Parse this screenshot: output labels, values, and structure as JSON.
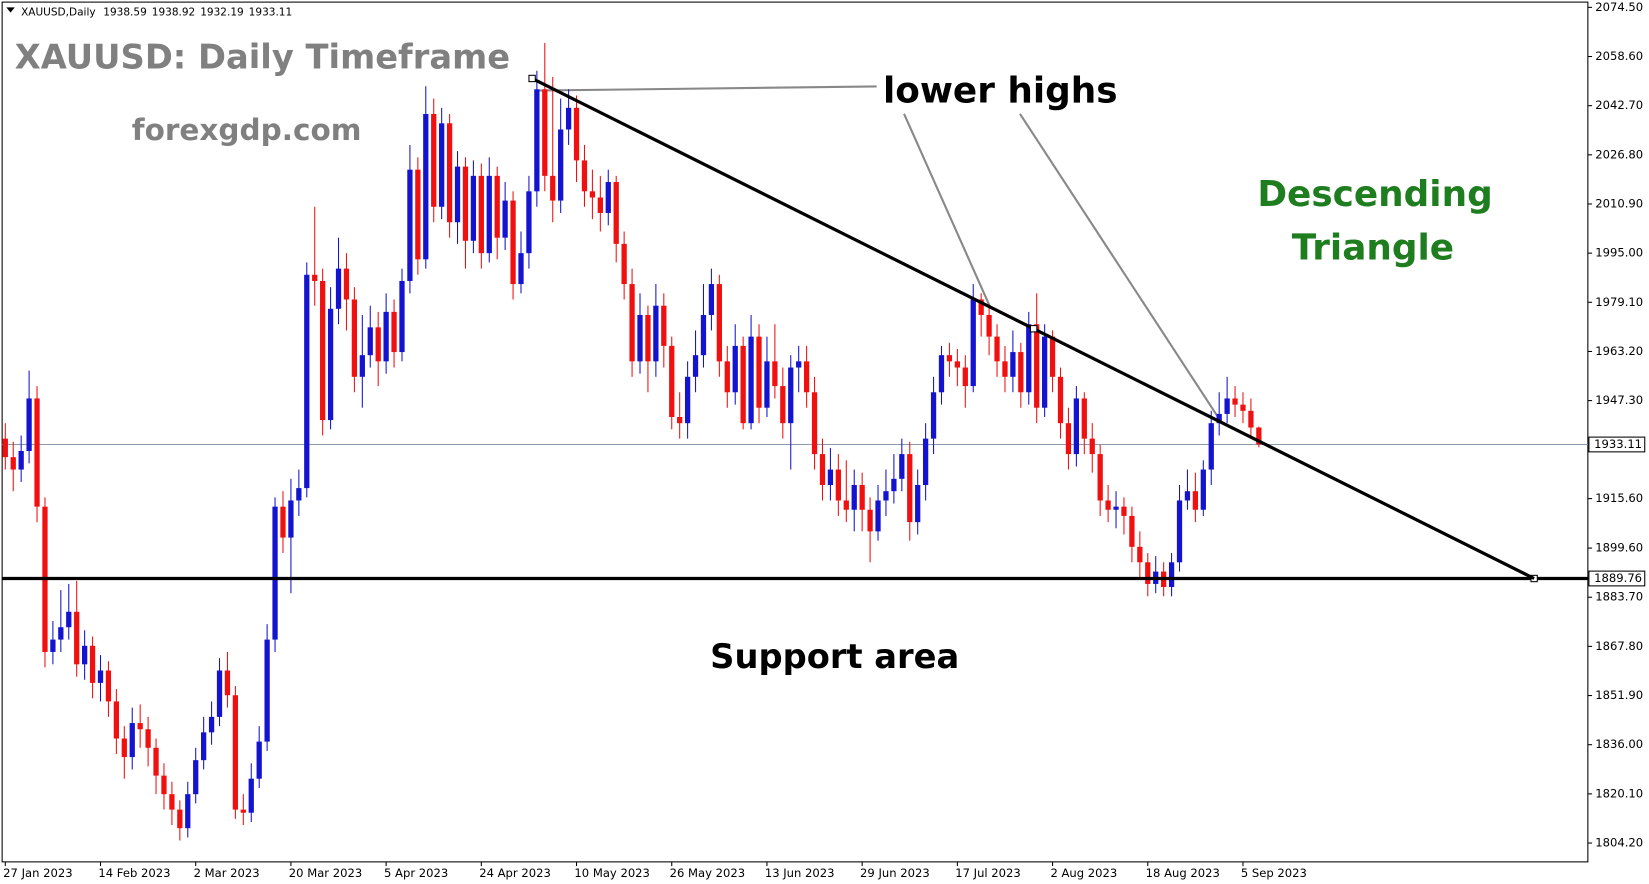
{
  "chart_data": {
    "type": "candlestick",
    "symbol": "XAUUSD,Daily",
    "title": "XAUUSD: Daily Timeframe",
    "subtitle": "forexgdp.com",
    "annotations": {
      "lower_highs": "lower highs",
      "pattern": [
        "Descending",
        "Triangle"
      ],
      "support": "Support area"
    },
    "bull_color": "#1414d0",
    "bear_color": "#f01010",
    "support_level": 1889.76,
    "trendline": {
      "start": 2051.5,
      "end": 1889.76
    },
    "ylim": [
      1798.1,
      2076.2
    ],
    "yticks": [
      {
        "value": 2074.5,
        "label": "2074.50"
      },
      {
        "value": 2058.6,
        "label": "2058.60"
      },
      {
        "value": 2042.7,
        "label": "2042.70"
      },
      {
        "value": 2026.8,
        "label": "2026.80"
      },
      {
        "value": 2010.9,
        "label": "2010.90"
      },
      {
        "value": 1995.0,
        "label": "1995.00"
      },
      {
        "value": 1979.1,
        "label": "1979.10"
      },
      {
        "value": 1963.2,
        "label": "1963.20"
      },
      {
        "value": 1947.3,
        "label": "1947.30"
      },
      {
        "value": 1915.6,
        "label": "1915.60"
      },
      {
        "value": 1899.6,
        "label": "1899.60"
      },
      {
        "value": 1883.7,
        "label": "1883.70"
      },
      {
        "value": 1867.8,
        "label": "1867.80"
      },
      {
        "value": 1851.9,
        "label": "1851.90"
      },
      {
        "value": 1836.0,
        "label": "1836.00"
      },
      {
        "value": 1820.1,
        "label": "1820.10"
      },
      {
        "value": 1804.2,
        "label": "1804.20"
      }
    ],
    "categories": [
      "27 Jan 2023",
      null,
      null,
      null,
      null,
      null,
      null,
      null,
      null,
      null,
      null,
      null,
      "14 Feb 2023",
      null,
      null,
      null,
      null,
      null,
      null,
      null,
      null,
      null,
      null,
      null,
      "2 Mar 2023",
      null,
      null,
      null,
      null,
      null,
      null,
      null,
      null,
      null,
      null,
      null,
      "20 Mar 2023",
      null,
      null,
      null,
      null,
      null,
      null,
      null,
      null,
      null,
      null,
      null,
      "5 Apr 2023",
      null,
      null,
      null,
      null,
      null,
      null,
      null,
      null,
      null,
      null,
      null,
      "24 Apr 2023",
      null,
      null,
      null,
      null,
      null,
      null,
      null,
      null,
      null,
      null,
      null,
      "10 May 2023",
      null,
      null,
      null,
      null,
      null,
      null,
      null,
      null,
      null,
      null,
      null,
      "26 May 2023",
      null,
      null,
      null,
      null,
      null,
      null,
      null,
      null,
      null,
      null,
      null,
      "13 Jun 2023",
      null,
      null,
      null,
      null,
      null,
      null,
      null,
      null,
      null,
      null,
      null,
      "29 Jun 2023",
      null,
      null,
      null,
      null,
      null,
      null,
      null,
      null,
      null,
      null,
      null,
      "17 Jul 2023",
      null,
      null,
      null,
      null,
      null,
      null,
      null,
      null,
      null,
      null,
      null,
      "2 Aug 2023",
      null,
      null,
      null,
      null,
      null,
      null,
      null,
      null,
      null,
      null,
      null,
      "18 Aug 2023",
      null,
      null,
      null,
      null,
      null,
      null,
      null,
      null,
      null,
      null,
      null,
      "5 Sep 2023",
      null,
      null
    ],
    "ohlc": [
      [
        1935,
        1940,
        1925,
        1929
      ],
      [
        1929,
        1934,
        1918,
        1925
      ],
      [
        1925,
        1936,
        1921,
        1931
      ],
      [
        1931,
        1957,
        1927,
        1948
      ],
      [
        1948,
        1952,
        1908,
        1913
      ],
      [
        1913,
        1916,
        1861,
        1866
      ],
      [
        1866,
        1876,
        1862,
        1870
      ],
      [
        1870,
        1886,
        1866,
        1874
      ],
      [
        1874,
        1888,
        1870,
        1879
      ],
      [
        1879,
        1889,
        1858,
        1862
      ],
      [
        1862,
        1873,
        1857,
        1868
      ],
      [
        1868,
        1871,
        1851,
        1856
      ],
      [
        1856,
        1865,
        1850,
        1860
      ],
      [
        1860,
        1863,
        1845,
        1850
      ],
      [
        1850,
        1854,
        1833,
        1838
      ],
      [
        1838,
        1842,
        1825,
        1832
      ],
      [
        1832,
        1848,
        1828,
        1843
      ],
      [
        1843,
        1849,
        1835,
        1841
      ],
      [
        1841,
        1845,
        1829,
        1835
      ],
      [
        1835,
        1838,
        1820,
        1826
      ],
      [
        1826,
        1830,
        1815,
        1820
      ],
      [
        1820,
        1824,
        1810,
        1815
      ],
      [
        1815,
        1818,
        1805,
        1809
      ],
      [
        1809,
        1824,
        1806,
        1820
      ],
      [
        1820,
        1835,
        1817,
        1831
      ],
      [
        1831,
        1845,
        1828,
        1840
      ],
      [
        1840,
        1850,
        1836,
        1845
      ],
      [
        1845,
        1864,
        1842,
        1860
      ],
      [
        1860,
        1866,
        1848,
        1852
      ],
      [
        1852,
        1855,
        1812,
        1815
      ],
      [
        1815,
        1820,
        1810,
        1814
      ],
      [
        1814,
        1830,
        1811,
        1825
      ],
      [
        1825,
        1842,
        1822,
        1837
      ],
      [
        1837,
        1875,
        1834,
        1870
      ],
      [
        1870,
        1916,
        1866,
        1913
      ],
      [
        1913,
        1918,
        1898,
        1903
      ],
      [
        1903,
        1922,
        1885,
        1915
      ],
      [
        1915,
        1925,
        1910,
        1919
      ],
      [
        1919,
        1992,
        1916,
        1988
      ],
      [
        1988,
        2010,
        1978,
        1986
      ],
      [
        1986,
        1990,
        1936,
        1941
      ],
      [
        1941,
        1984,
        1938,
        1977
      ],
      [
        1977,
        2000,
        1972,
        1990
      ],
      [
        1990,
        1995,
        1970,
        1980
      ],
      [
        1980,
        1984,
        1950,
        1955
      ],
      [
        1955,
        1975,
        1945,
        1962
      ],
      [
        1962,
        1978,
        1958,
        1971
      ],
      [
        1971,
        1976,
        1952,
        1960
      ],
      [
        1960,
        1982,
        1956,
        1976
      ],
      [
        1976,
        1980,
        1958,
        1963
      ],
      [
        1963,
        1990,
        1960,
        1986
      ],
      [
        1986,
        2030,
        1982,
        2022
      ],
      [
        2022,
        2026,
        1988,
        1993
      ],
      [
        1993,
        2049,
        1990,
        2040
      ],
      [
        2040,
        2045,
        2005,
        2010
      ],
      [
        2010,
        2042,
        2006,
        2037
      ],
      [
        2037,
        2040,
        2000,
        2005
      ],
      [
        2005,
        2028,
        1998,
        2023
      ],
      [
        2023,
        2026,
        1990,
        1999
      ],
      [
        1999,
        2025,
        1995,
        2020
      ],
      [
        2020,
        2024,
        1990,
        1995
      ],
      [
        1995,
        2026,
        1992,
        2020
      ],
      [
        2020,
        2023,
        1993,
        2000
      ],
      [
        2000,
        2018,
        1996,
        2012
      ],
      [
        2012,
        2015,
        1980,
        1985
      ],
      [
        1985,
        2002,
        1982,
        1995
      ],
      [
        1995,
        2020,
        1990,
        2015
      ],
      [
        2015,
        2054,
        2010,
        2048
      ],
      [
        2048,
        2063,
        2015,
        2020
      ],
      [
        2020,
        2052,
        2005,
        2012
      ],
      [
        2012,
        2045,
        2008,
        2035
      ],
      [
        2035,
        2048,
        2030,
        2042
      ],
      [
        2042,
        2046,
        2018,
        2025
      ],
      [
        2025,
        2030,
        2010,
        2015
      ],
      [
        2015,
        2022,
        2006,
        2013
      ],
      [
        2013,
        2020,
        2002,
        2008
      ],
      [
        2008,
        2022,
        2004,
        2018
      ],
      [
        2018,
        2020,
        1992,
        1998
      ],
      [
        1998,
        2002,
        1980,
        1985
      ],
      [
        1985,
        1990,
        1955,
        1960
      ],
      [
        1960,
        1982,
        1956,
        1975
      ],
      [
        1975,
        1978,
        1950,
        1960
      ],
      [
        1960,
        1985,
        1955,
        1978
      ],
      [
        1978,
        1982,
        1958,
        1965
      ],
      [
        1965,
        1968,
        1938,
        1942
      ],
      [
        1942,
        1950,
        1935,
        1940
      ],
      [
        1940,
        1960,
        1935,
        1955
      ],
      [
        1955,
        1970,
        1950,
        1962
      ],
      [
        1962,
        1985,
        1958,
        1975
      ],
      [
        1975,
        1990,
        1970,
        1985
      ],
      [
        1985,
        1988,
        1955,
        1960
      ],
      [
        1960,
        1965,
        1945,
        1950
      ],
      [
        1950,
        1972,
        1946,
        1965
      ],
      [
        1965,
        1968,
        1938,
        1940
      ],
      [
        1940,
        1975,
        1938,
        1968
      ],
      [
        1968,
        1972,
        1940,
        1945
      ],
      [
        1945,
        1968,
        1942,
        1960
      ],
      [
        1960,
        1972,
        1948,
        1952
      ],
      [
        1952,
        1958,
        1935,
        1940
      ],
      [
        1940,
        1962,
        1925,
        1958
      ],
      [
        1958,
        1965,
        1950,
        1960
      ],
      [
        1960,
        1965,
        1945,
        1950
      ],
      [
        1950,
        1955,
        1925,
        1930
      ],
      [
        1930,
        1935,
        1915,
        1920
      ],
      [
        1920,
        1932,
        1915,
        1925
      ],
      [
        1925,
        1930,
        1910,
        1915
      ],
      [
        1915,
        1928,
        1908,
        1912
      ],
      [
        1912,
        1925,
        1905,
        1920
      ],
      [
        1920,
        1924,
        1905,
        1912
      ],
      [
        1912,
        1916,
        1895,
        1905
      ],
      [
        1905,
        1920,
        1902,
        1915
      ],
      [
        1915,
        1925,
        1910,
        1918
      ],
      [
        1918,
        1930,
        1914,
        1922
      ],
      [
        1922,
        1935,
        1918,
        1930
      ],
      [
        1930,
        1934,
        1902,
        1908
      ],
      [
        1908,
        1925,
        1904,
        1920
      ],
      [
        1920,
        1940,
        1915,
        1935
      ],
      [
        1935,
        1955,
        1930,
        1950
      ],
      [
        1950,
        1965,
        1946,
        1962
      ],
      [
        1962,
        1966,
        1955,
        1960
      ],
      [
        1960,
        1964,
        1952,
        1958
      ],
      [
        1958,
        1962,
        1945,
        1952
      ],
      [
        1952,
        1985,
        1950,
        1980
      ],
      [
        1980,
        1982,
        1968,
        1975
      ],
      [
        1975,
        1978,
        1962,
        1968
      ],
      [
        1968,
        1972,
        1955,
        1960
      ],
      [
        1960,
        1965,
        1950,
        1955
      ],
      [
        1955,
        1970,
        1950,
        1963
      ],
      [
        1963,
        1966,
        1945,
        1950
      ],
      [
        1950,
        1976,
        1946,
        1972
      ],
      [
        1972,
        1982,
        1940,
        1945
      ],
      [
        1945,
        1972,
        1942,
        1968
      ],
      [
        1968,
        1970,
        1950,
        1955
      ],
      [
        1955,
        1958,
        1935,
        1940
      ],
      [
        1940,
        1945,
        1925,
        1930
      ],
      [
        1930,
        1952,
        1926,
        1948
      ],
      [
        1948,
        1950,
        1930,
        1935
      ],
      [
        1935,
        1940,
        1924,
        1930
      ],
      [
        1930,
        1933,
        1910,
        1915
      ],
      [
        1915,
        1920,
        1908,
        1912
      ],
      [
        1912,
        1918,
        1906,
        1913
      ],
      [
        1913,
        1916,
        1904,
        1910
      ],
      [
        1910,
        1913,
        1895,
        1900
      ],
      [
        1900,
        1905,
        1890,
        1895
      ],
      [
        1895,
        1898,
        1884,
        1888
      ],
      [
        1888,
        1897,
        1885,
        1892
      ],
      [
        1892,
        1895,
        1884,
        1887
      ],
      [
        1887,
        1898,
        1884,
        1895
      ],
      [
        1895,
        1920,
        1892,
        1915
      ],
      [
        1915,
        1925,
        1912,
        1918
      ],
      [
        1918,
        1924,
        1908,
        1912
      ],
      [
        1912,
        1928,
        1910,
        1925
      ],
      [
        1925,
        1944,
        1920,
        1940
      ],
      [
        1940,
        1950,
        1936,
        1943
      ],
      [
        1943,
        1955,
        1940,
        1948
      ],
      [
        1948,
        1952,
        1942,
        1946
      ],
      [
        1946,
        1950,
        1940,
        1944
      ],
      [
        1944,
        1948,
        1936,
        1938.59
      ],
      [
        1938.59,
        1938.92,
        1932.19,
        1933.11
      ]
    ]
  }
}
